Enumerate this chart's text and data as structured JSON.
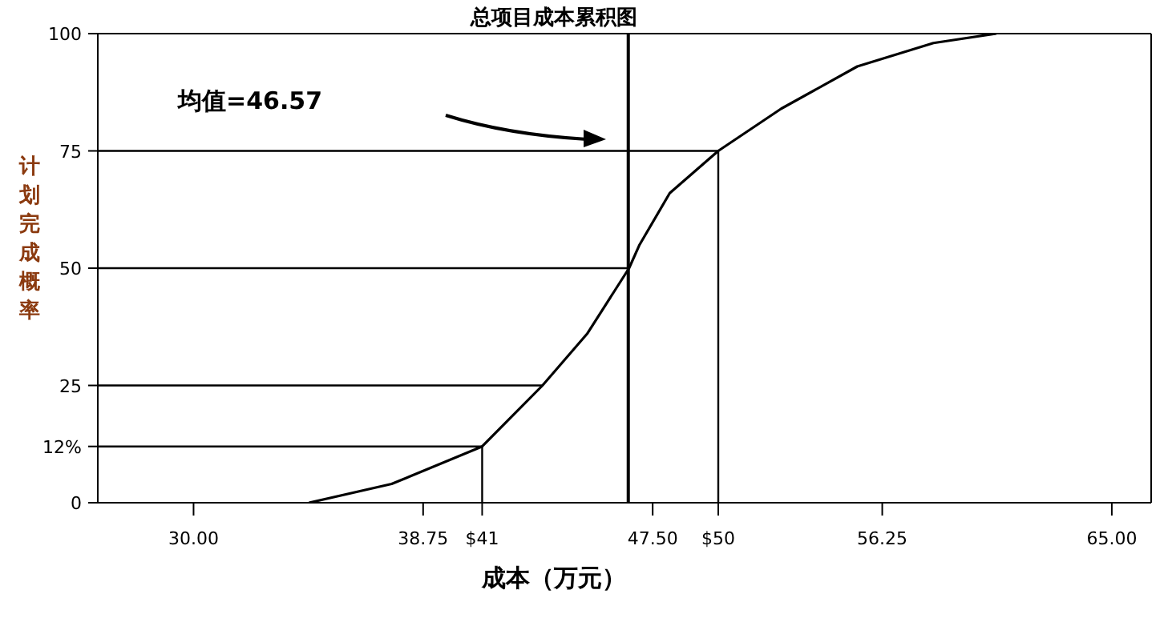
{
  "chart_data": {
    "type": "line",
    "title": "总项目成本累积图",
    "xlabel": "成本（万元）",
    "ylabel": "计划完成概率",
    "annotations": [
      "均值=46.57"
    ],
    "xlim": [
      26.35,
      66.5
    ],
    "ylim": [
      0,
      100
    ],
    "xticks": [
      {
        "value": 30,
        "label": "30.00"
      },
      {
        "value": 38.75,
        "label": "38.75"
      },
      {
        "value": 41,
        "label": "$41"
      },
      {
        "value": 47.5,
        "label": "47.50"
      },
      {
        "value": 50,
        "label": "$50"
      },
      {
        "value": 56.25,
        "label": "56.25"
      },
      {
        "value": 65,
        "label": "65.00"
      }
    ],
    "yticks": [
      0,
      {
        "value": 12,
        "label": "12%"
      },
      25,
      50,
      75,
      100
    ],
    "grid": false,
    "marker": "none",
    "line_style": "solid",
    "ref_lines": [
      {
        "axis": "x",
        "value": 46.57,
        "color": "#000000"
      }
    ],
    "series": [
      {
        "color": "#000000",
        "x": [
          34.4,
          37.55,
          41,
          43.3,
          45,
          46.6,
          47,
          48.15,
          50,
          52.4,
          55.3,
          58.2,
          60.6
        ],
        "values": [
          0,
          4,
          12,
          25,
          36,
          50,
          55,
          66,
          75,
          84,
          93,
          98,
          100
        ]
      },
      {
        "color": "#000000",
        "x": [
          26.35,
          41,
          41
        ],
        "values": [
          12,
          12,
          0
        ]
      },
      {
        "color": "#000000",
        "x": [
          26.35,
          43.3
        ],
        "values": [
          25,
          25
        ]
      },
      {
        "color": "#000000",
        "x": [
          26.35,
          46.6
        ],
        "values": [
          50,
          50
        ]
      },
      {
        "color": "#000000",
        "x": [
          26.35,
          50,
          50
        ],
        "values": [
          75,
          75,
          0
        ]
      }
    ]
  }
}
